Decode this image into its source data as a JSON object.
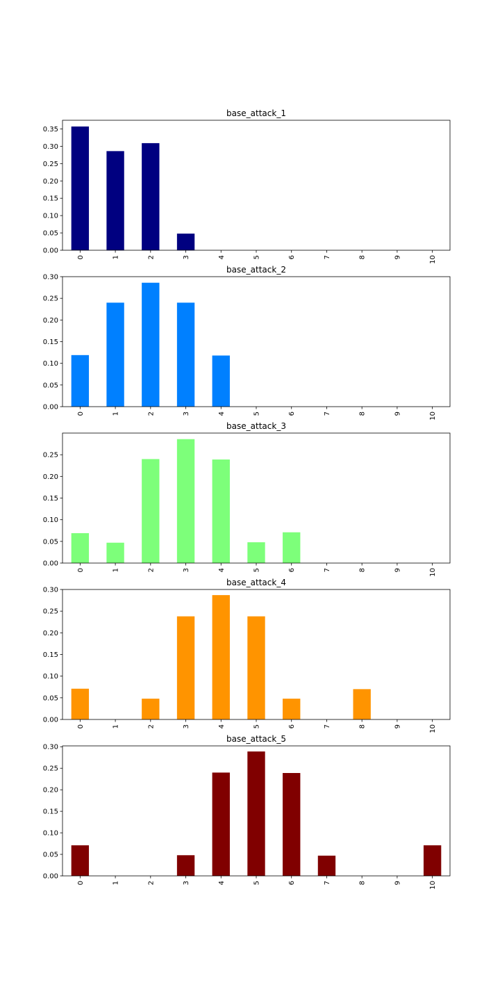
{
  "chart_data": [
    {
      "type": "bar",
      "title": "base_attack_1",
      "color": "#000080",
      "categories": [
        "0",
        "1",
        "2",
        "3",
        "4",
        "5",
        "6",
        "7",
        "8",
        "9",
        "10"
      ],
      "values": [
        0.357,
        0.286,
        0.309,
        0.048,
        0,
        0,
        0,
        0,
        0,
        0,
        0
      ],
      "ylim": [
        0,
        0.375
      ],
      "yticks": [
        "0.00",
        "0.05",
        "0.10",
        "0.15",
        "0.20",
        "0.25",
        "0.30",
        "0.35"
      ],
      "xlabel": "",
      "ylabel": ""
    },
    {
      "type": "bar",
      "title": "base_attack_2",
      "color": "#0080ff",
      "categories": [
        "0",
        "1",
        "2",
        "3",
        "4",
        "5",
        "6",
        "7",
        "8",
        "9",
        "10"
      ],
      "values": [
        0.119,
        0.24,
        0.286,
        0.24,
        0.118,
        0,
        0,
        0,
        0,
        0,
        0
      ],
      "ylim": [
        0,
        0.3
      ],
      "yticks": [
        "0.00",
        "0.05",
        "0.10",
        "0.15",
        "0.20",
        "0.25",
        "0.30"
      ],
      "xlabel": "",
      "ylabel": ""
    },
    {
      "type": "bar",
      "title": "base_attack_3",
      "color": "#7dff7a",
      "categories": [
        "0",
        "1",
        "2",
        "3",
        "4",
        "5",
        "6",
        "7",
        "8",
        "9",
        "10"
      ],
      "values": [
        0.069,
        0.047,
        0.24,
        0.286,
        0.239,
        0.048,
        0.071,
        0,
        0,
        0,
        0
      ],
      "ylim": [
        0,
        0.3
      ],
      "yticks": [
        "0.00",
        "0.05",
        "0.10",
        "0.15",
        "0.20",
        "0.25"
      ],
      "xlabel": "",
      "ylabel": ""
    },
    {
      "type": "bar",
      "title": "base_attack_4",
      "color": "#ff9400",
      "categories": [
        "0",
        "1",
        "2",
        "3",
        "4",
        "5",
        "6",
        "7",
        "8",
        "9",
        "10"
      ],
      "values": [
        0.071,
        0,
        0.048,
        0.238,
        0.287,
        0.238,
        0.048,
        0,
        0.07,
        0,
        0
      ],
      "ylim": [
        0,
        0.3
      ],
      "yticks": [
        "0.00",
        "0.05",
        "0.10",
        "0.15",
        "0.20",
        "0.25",
        "0.30"
      ],
      "xlabel": "",
      "ylabel": ""
    },
    {
      "type": "bar",
      "title": "base_attack_5",
      "color": "#800000",
      "categories": [
        "0",
        "1",
        "2",
        "3",
        "4",
        "5",
        "6",
        "7",
        "8",
        "9",
        "10"
      ],
      "values": [
        0.071,
        0,
        0,
        0.048,
        0.24,
        0.289,
        0.239,
        0.047,
        0,
        0,
        0.071
      ],
      "ylim": [
        0,
        0.302
      ],
      "yticks": [
        "0.00",
        "0.05",
        "0.10",
        "0.15",
        "0.20",
        "0.25",
        "0.30"
      ],
      "xlabel": "",
      "ylabel": ""
    }
  ]
}
